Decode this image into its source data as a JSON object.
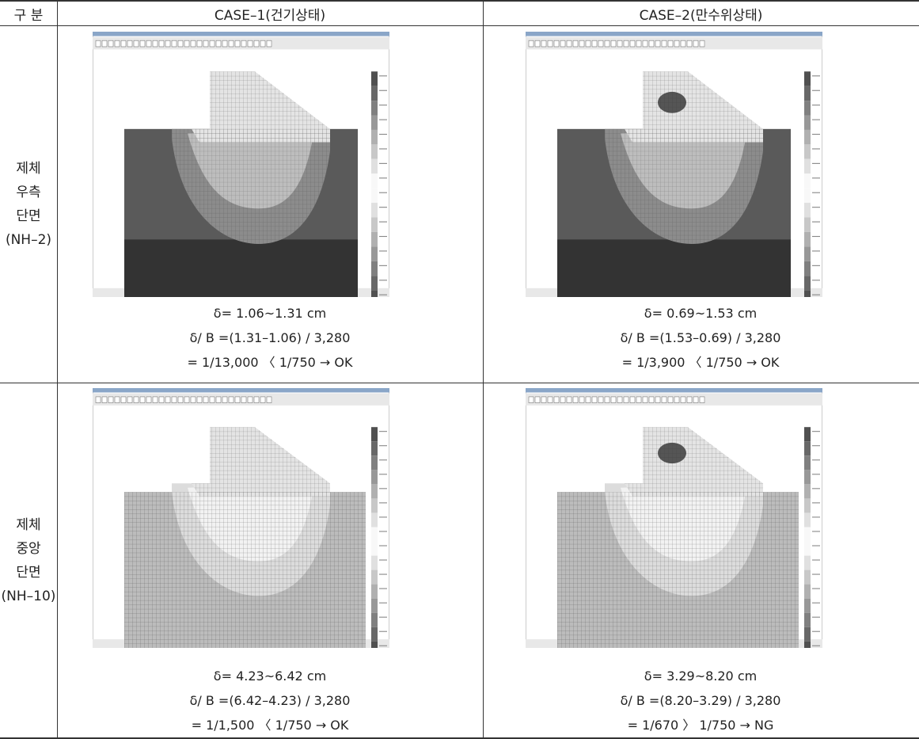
{
  "table": {
    "header": [
      "구 분",
      "CASE–1(건기상태)",
      "CASE–2(만수위상태)"
    ],
    "rows": [
      {
        "label": [
          "제체",
          "우측",
          "단면",
          "(NH–2)"
        ],
        "cells": [
          [
            "δ= 1.06~1.31 cm",
            "δ/ B =(1.31–1.06) / 3,280",
            "= 1/13,000 〈 1/750 → OK"
          ],
          [
            "δ= 0.69~1.53 cm",
            "δ/ B =(1.53–0.69) / 3,280",
            "= 1/3,900 〈 1/750 → OK"
          ]
        ]
      },
      {
        "label": [
          "제체",
          "중앙",
          "단면",
          "(NH–10)"
        ],
        "cells": [
          [
            "δ= 4.23~6.42 cm",
            "δ/ B =(6.42–4.23) / 3,280",
            "= 1/1,500 〈 1/750 → OK"
          ],
          [
            "δ= 3.29~8.20 cm",
            "δ/ B =(8.20–3.29) / 3,280",
            "= 1/670 〉 1/750 → NG"
          ]
        ]
      }
    ]
  }
}
